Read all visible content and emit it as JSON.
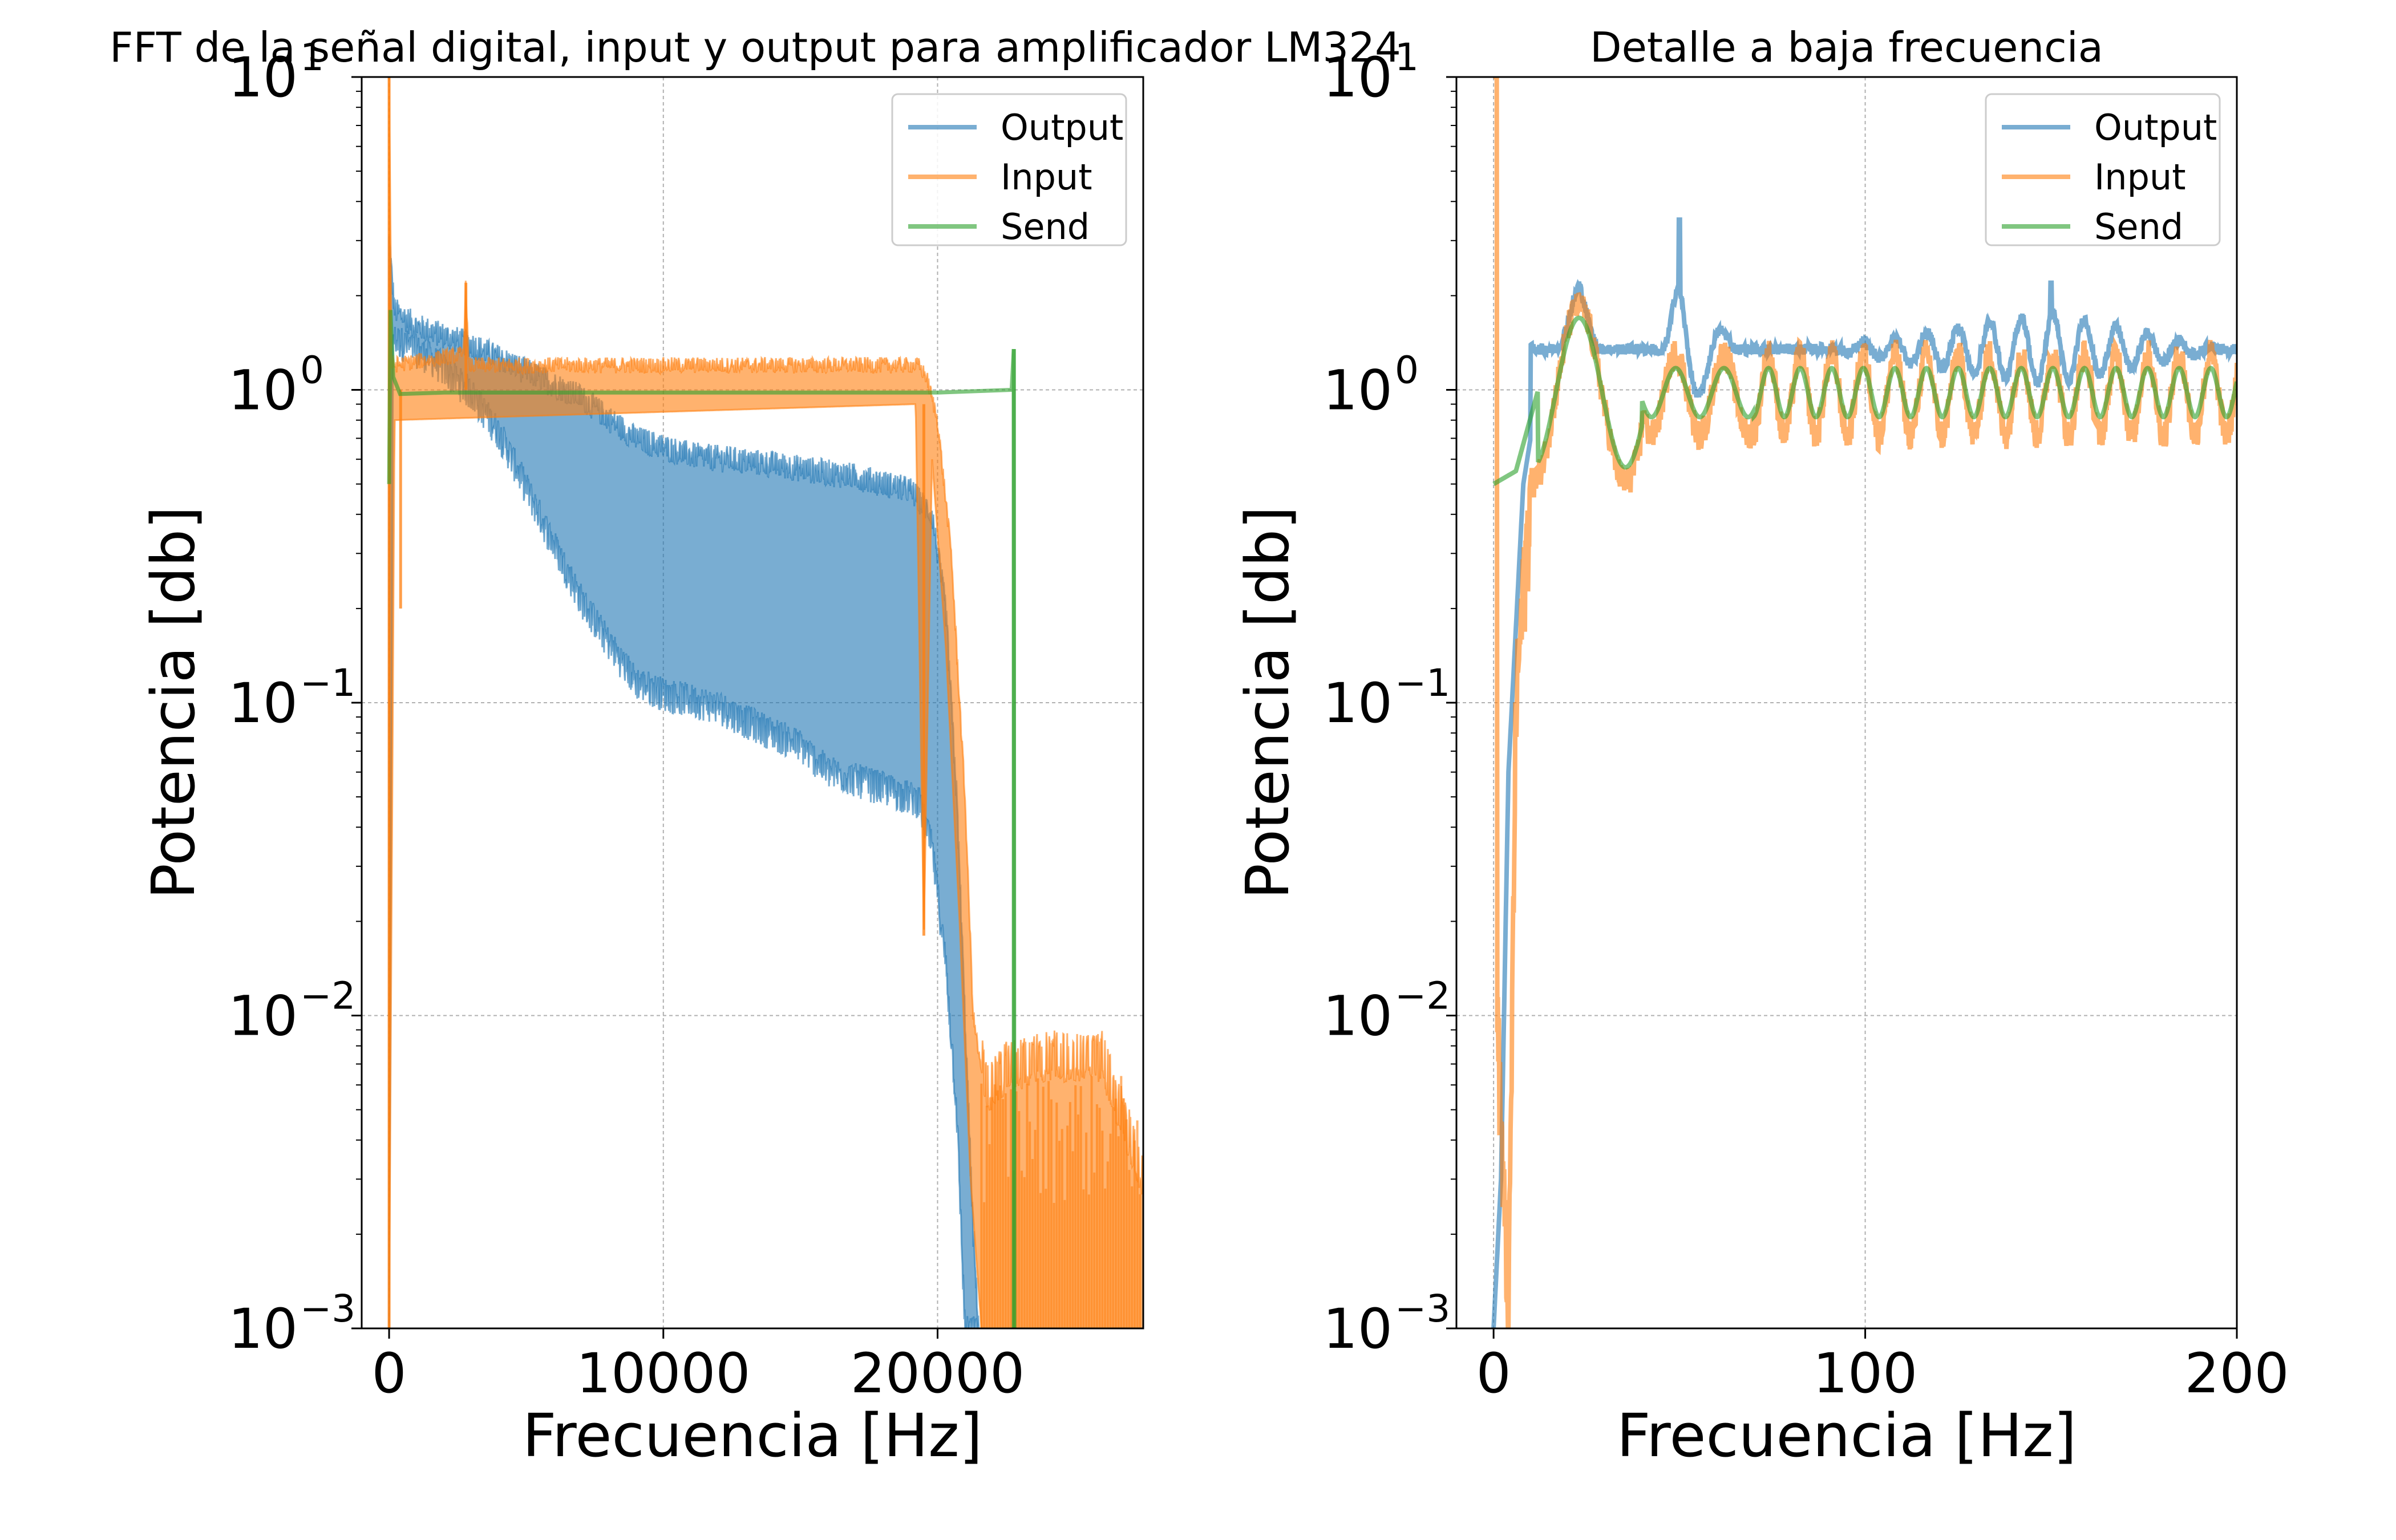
{
  "colors": {
    "output": "#1f77b4",
    "input": "#ff7f0e",
    "send": "#2ca02c",
    "grid": "#b0b0b0"
  },
  "chart_data": [
    {
      "type": "line",
      "title": "FFT de la señal digital, input y output para amplificador LM324",
      "xlabel": "Frecuencia [Hz]",
      "ylabel": "Potencia [db]",
      "yscale": "log",
      "xlim": [
        -1000,
        27500
      ],
      "ylim": [
        0.001,
        10
      ],
      "xticks": [
        0,
        10000,
        20000
      ],
      "xtick_labels": [
        "0",
        "10000",
        "20000"
      ],
      "yticks": [
        0.001,
        0.01,
        0.1,
        1,
        10
      ],
      "ytick_bases": [
        "10",
        "10",
        "10",
        "10",
        "10"
      ],
      "ytick_exps": [
        "−3",
        "−2",
        "−1",
        "0",
        "1"
      ],
      "grid": true,
      "legend_position": "top-right",
      "series": [
        {
          "name": "Output",
          "color_key": "output",
          "envelope_upper": [
            [
              0,
              3.0
            ],
            [
              200,
              1.8
            ],
            [
              1000,
              1.6
            ],
            [
              3000,
              1.4
            ],
            [
              5000,
              1.15
            ],
            [
              7000,
              0.95
            ],
            [
              9000,
              0.7
            ],
            [
              11000,
              0.62
            ],
            [
              14000,
              0.58
            ],
            [
              17000,
              0.53
            ],
            [
              19000,
              0.48
            ],
            [
              19800,
              0.4
            ],
            [
              20300,
              0.2
            ],
            [
              20700,
              0.05
            ],
            [
              21000,
              0.01
            ],
            [
              21300,
              0.002
            ],
            [
              21500,
              0.001
            ]
          ],
          "envelope_lower": [
            [
              0,
              0.001
            ],
            [
              150,
              1.5
            ],
            [
              1500,
              1.3
            ],
            [
              3000,
              1.0
            ],
            [
              4000,
              0.75
            ],
            [
              5000,
              0.5
            ],
            [
              6000,
              0.33
            ],
            [
              7000,
              0.22
            ],
            [
              8000,
              0.16
            ],
            [
              9000,
              0.12
            ],
            [
              10000,
              0.11
            ],
            [
              12000,
              0.1
            ],
            [
              13000,
              0.09
            ],
            [
              15000,
              0.075
            ],
            [
              16000,
              0.062
            ],
            [
              18000,
              0.055
            ],
            [
              19300,
              0.05
            ],
            [
              19800,
              0.035
            ],
            [
              20300,
              0.015
            ],
            [
              20700,
              0.005
            ],
            [
              21000,
              0.001
            ]
          ]
        },
        {
          "name": "Input",
          "color_key": "input",
          "envelope_upper": [
            [
              0,
              10
            ],
            [
              100,
              1.2
            ],
            [
              2700,
              1.3
            ],
            [
              2800,
              2.2
            ],
            [
              2900,
              1.2
            ],
            [
              19300,
              1.2
            ],
            [
              19600,
              1.1
            ],
            [
              20000,
              0.8
            ],
            [
              20500,
              0.3
            ],
            [
              21000,
              0.05
            ],
            [
              21300,
              0.01
            ],
            [
              21800,
              0.005
            ],
            [
              22500,
              0.006
            ],
            [
              24000,
              0.0065
            ],
            [
              26000,
              0.0065
            ],
            [
              27500,
              0.0027
            ]
          ],
          "envelope_lower": [
            [
              0,
              0.001
            ],
            [
              200,
              0.8
            ],
            [
              19200,
              0.9
            ],
            [
              19500,
              0.018
            ],
            [
              19800,
              0.6
            ],
            [
              20300,
              0.15
            ],
            [
              20800,
              0.02
            ],
            [
              21200,
              0.003
            ],
            [
              21600,
              0.001
            ],
            [
              27500,
              0.001
            ]
          ]
        },
        {
          "name": "Send",
          "color_key": "send",
          "points": [
            [
              0,
              0.5
            ],
            [
              50,
              1.8
            ],
            [
              150,
              1.1
            ],
            [
              400,
              0.97
            ],
            [
              2000,
              0.98
            ],
            [
              10000,
              0.98
            ],
            [
              20000,
              0.98
            ],
            [
              22700,
              1.0
            ],
            [
              22780,
              1.35
            ],
            [
              22800,
              0.001
            ]
          ]
        }
      ]
    },
    {
      "type": "line",
      "title": "Detalle a baja frecuencia",
      "xlabel": "Frecuencia [Hz]",
      "ylabel": "Potencia [db]",
      "yscale": "log",
      "xlim": [
        -10,
        200
      ],
      "ylim": [
        0.001,
        10
      ],
      "xticks": [
        0,
        100,
        200
      ],
      "xtick_labels": [
        "0",
        "100",
        "200"
      ],
      "yticks": [
        0.001,
        0.01,
        0.1,
        1,
        10
      ],
      "ytick_bases": [
        "10",
        "10",
        "10",
        "10",
        "10"
      ],
      "ytick_exps": [
        "−3",
        "−2",
        "−1",
        "0",
        "1"
      ],
      "grid": true,
      "legend_position": "top-right",
      "series": [
        {
          "name": "Output",
          "color_key": "output",
          "description_points": [
            [
              0,
              0.001
            ],
            [
              2,
              0.003
            ],
            [
              4,
              0.06
            ],
            [
              8,
              0.5
            ],
            [
              12,
              1.0
            ],
            [
              23,
              2.3
            ],
            [
              36,
              0.65
            ],
            [
              47,
              1.9
            ],
            [
              50,
              3.5
            ],
            [
              60,
              1.9
            ],
            [
              69,
              1.15
            ],
            [
              150,
              2.2
            ],
            [
              200,
              1.3
            ]
          ]
        },
        {
          "name": "Input",
          "color_key": "input",
          "description_points": [
            [
              0,
              10
            ],
            [
              1,
              0.01
            ],
            [
              4,
              0.001
            ],
            [
              6,
              0.1
            ],
            [
              10,
              0.5
            ],
            [
              23,
              1.6
            ],
            [
              36,
              0.45
            ],
            [
              48,
              1.6
            ],
            [
              180,
              0.55
            ],
            [
              200,
              0.85
            ]
          ]
        },
        {
          "name": "Send",
          "color_key": "send",
          "description_points": [
            [
              0,
              0.5
            ],
            [
              6,
              0.55
            ],
            [
              12,
              1.0
            ],
            [
              23,
              1.8
            ],
            [
              36,
              0.6
            ],
            [
              47,
              1.4
            ],
            [
              200,
              0.95
            ]
          ]
        }
      ]
    }
  ]
}
